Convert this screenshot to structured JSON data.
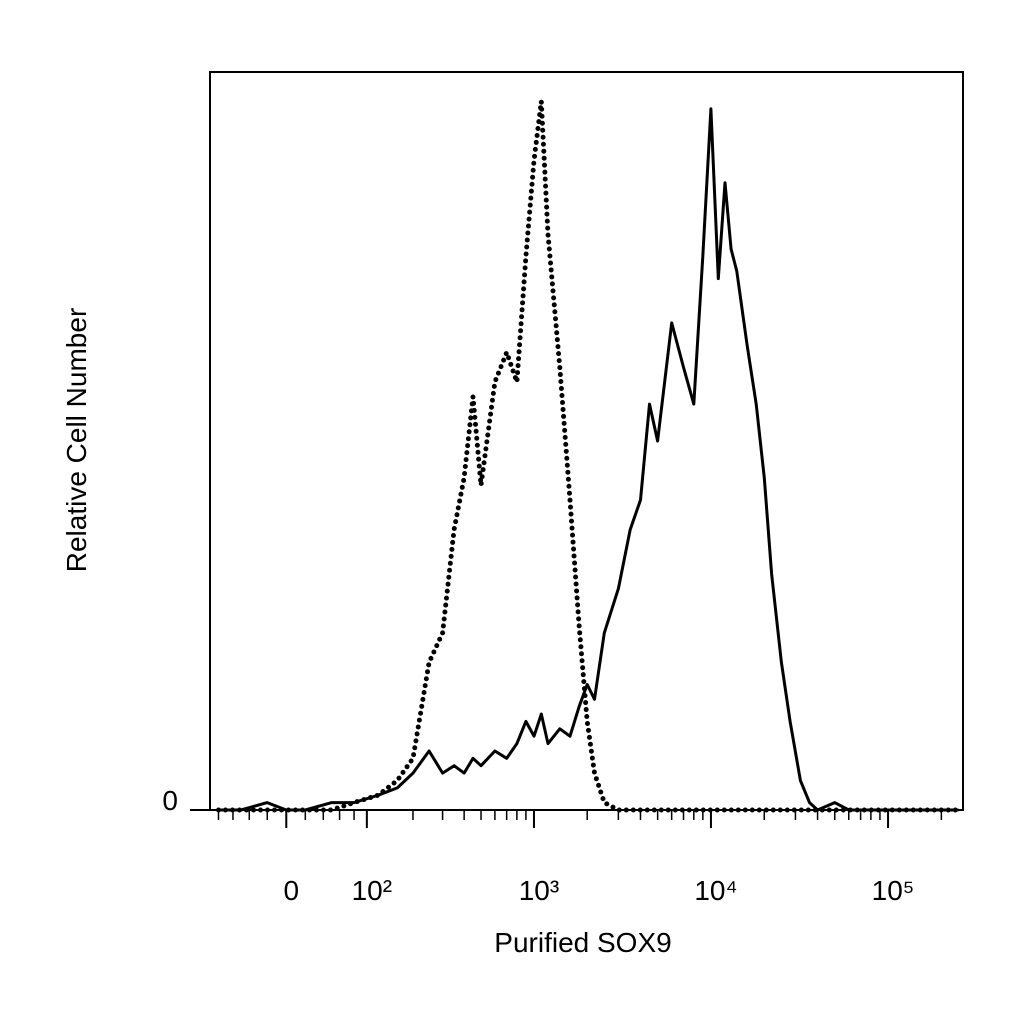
{
  "chart_data": {
    "type": "line",
    "x_label": "Purified SOX9",
    "y_label": "Relative Cell Number",
    "xscale": "asinh",
    "linthresh": 80,
    "xlim": [
      -93,
      265000
    ],
    "ylim": [
      0,
      100
    ],
    "xticks": [
      0,
      {
        "value": 100,
        "label": "10²"
      },
      {
        "value": 1000,
        "label": "10³"
      },
      {
        "value": 10000,
        "label": "10⁴"
      },
      {
        "value": 100000,
        "label": "10⁵"
      }
    ],
    "xticks_minor": [
      -80,
      -60,
      -40,
      -20,
      20,
      40,
      60,
      80,
      200,
      300,
      400,
      500,
      600,
      700,
      800,
      900,
      2000,
      3000,
      4000,
      5000,
      6000,
      7000,
      8000,
      9000,
      20000,
      30000,
      40000,
      50000,
      60000,
      70000,
      80000,
      90000,
      200000
    ],
    "yticks": [
      0
    ],
    "x": [
      -80,
      -50,
      -20,
      0,
      20,
      50,
      80,
      120,
      160,
      200,
      250,
      300,
      350,
      400,
      450,
      500,
      600,
      700,
      800,
      900,
      1000,
      1100,
      1200,
      1400,
      1600,
      1800,
      2000,
      2200,
      2500,
      3000,
      3500,
      4000,
      4500,
      5000,
      6000,
      7000,
      8000,
      9000,
      10000,
      11000,
      12000,
      13000,
      14000,
      16000,
      18000,
      20000,
      22000,
      25000,
      28000,
      32000,
      36000,
      40000,
      50000,
      60000,
      80000,
      100000,
      150000,
      200000,
      250000
    ],
    "series": [
      {
        "color": "#000000",
        "style": "solid",
        "values": [
          0,
          0,
          1,
          0,
          0,
          1,
          1,
          2,
          3,
          5,
          8,
          5,
          6,
          5,
          7,
          6,
          8,
          7,
          9,
          12,
          10,
          13,
          9,
          11,
          10,
          14,
          17,
          15,
          24,
          30,
          38,
          42,
          55,
          50,
          66,
          60,
          55,
          75,
          95,
          72,
          85,
          76,
          73,
          63,
          55,
          45,
          32,
          20,
          12,
          4,
          1,
          0,
          1,
          0,
          0,
          0,
          0,
          0,
          0
        ]
      },
      {
        "color": "#000000",
        "style": "dotted",
        "values": [
          0,
          0,
          0,
          0,
          0,
          0,
          1,
          2,
          4,
          7,
          20,
          24,
          38,
          45,
          56,
          44,
          58,
          62,
          58,
          75,
          88,
          96,
          78,
          60,
          42,
          25,
          12,
          5,
          1,
          0,
          0,
          0,
          0,
          0,
          0,
          0,
          0,
          0,
          0,
          0,
          0,
          0,
          0,
          0,
          0,
          0,
          0,
          0,
          0,
          0,
          0,
          0,
          0,
          0,
          0,
          0,
          0,
          0,
          0
        ]
      }
    ]
  }
}
